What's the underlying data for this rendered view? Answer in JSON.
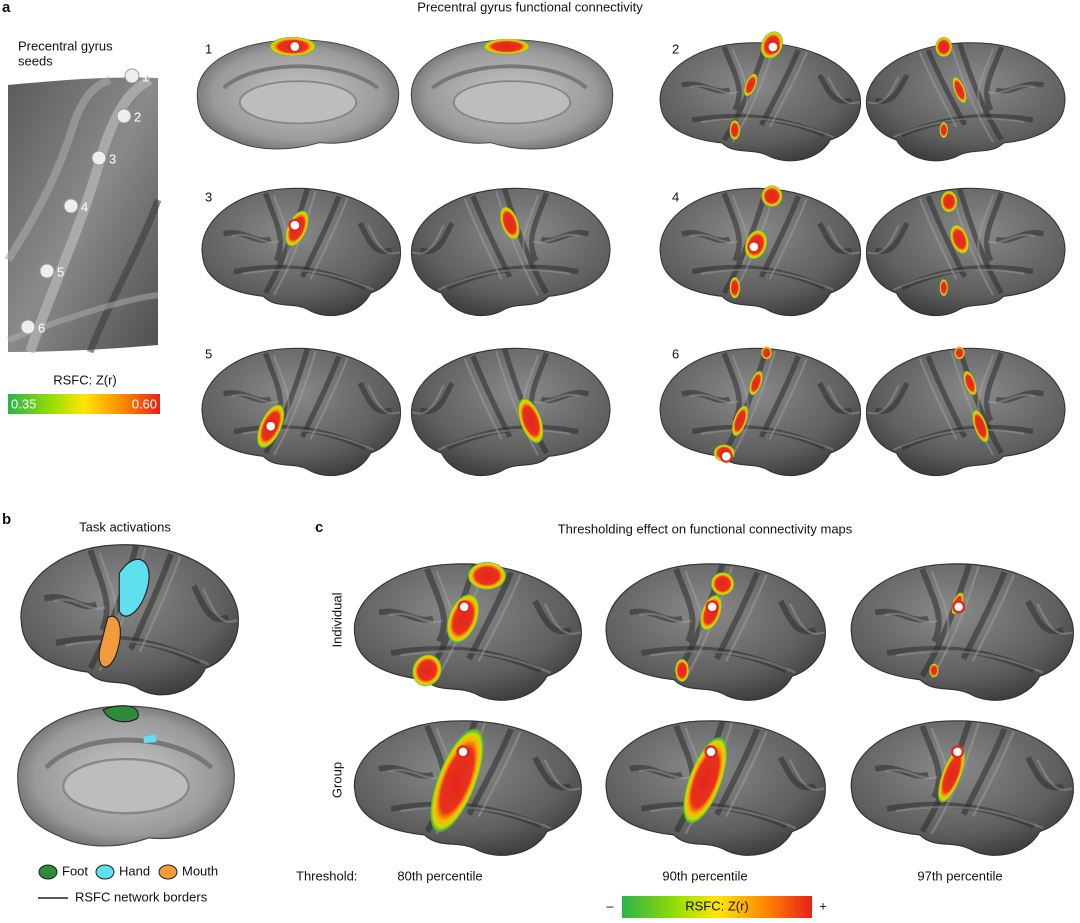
{
  "panel_a": {
    "letter": "a",
    "title": "Precentral gyrus functional connectivity",
    "seeds_title": [
      "Precentral gyrus",
      "seeds"
    ],
    "seeds": [
      "1",
      "2",
      "3",
      "4",
      "5",
      "6"
    ],
    "colorbar": {
      "title": "RSFC: Z(r)",
      "min": "0.35",
      "max": "0.60"
    },
    "maps": [
      "1",
      "2",
      "3",
      "4",
      "5",
      "6"
    ]
  },
  "panel_b": {
    "letter": "b",
    "title": "Task activations",
    "legend": [
      "Foot",
      "Hand",
      "Mouth"
    ],
    "border_label": "RSFC network borders"
  },
  "panel_c": {
    "letter": "c",
    "title": "Thresholding effect on functional connectivity maps",
    "rows": [
      "Individual",
      "Group"
    ],
    "threshold_label": "Threshold:",
    "columns": [
      "80th percentile",
      "90th percentile",
      "97th percentile"
    ],
    "colorbar": {
      "minus": "–",
      "title": "RSFC: Z(r)",
      "plus": "+"
    }
  }
}
